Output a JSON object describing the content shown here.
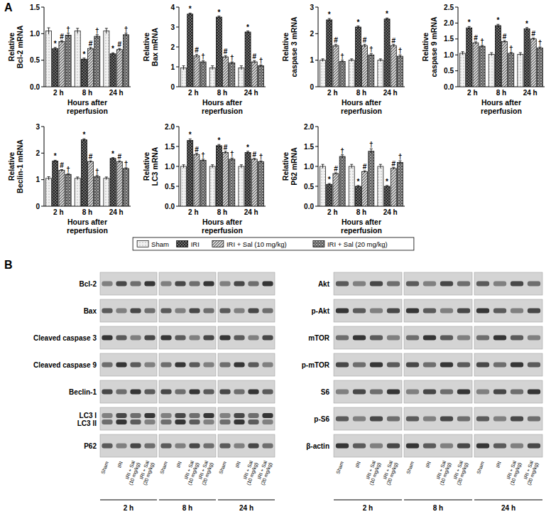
{
  "figure": {
    "panel_label": "A"
  },
  "chart_data": [
    {
      "type": "bar",
      "y_label": "Relative\nBcl-2 mRNA",
      "x_label": "Hours after\nreperfusion",
      "categories": [
        "2 h",
        "8 h",
        "24 h"
      ],
      "ylim": [
        0,
        1.5
      ],
      "yticks": [
        {
          "value": 0,
          "label": "0.0"
        },
        {
          "value": 0.5,
          "label": "0.5"
        },
        {
          "value": 1,
          "label": "1.0"
        },
        {
          "value": 1.5,
          "label": "1.5"
        }
      ],
      "legend": "bottom",
      "series": [
        {
          "name": "Sham",
          "color": "#f2f2f2",
          "values": [
            1.05,
            1.05,
            1.05
          ],
          "errors": [
            0.06,
            0.05,
            0.05
          ],
          "annotations": [
            null,
            null,
            null
          ]
        },
        {
          "name": "IRI",
          "color": "#6e6e6e",
          "values": [
            0.72,
            0.52,
            0.62
          ],
          "errors": [
            0.02,
            0.02,
            0.02
          ],
          "annotations": [
            "*",
            "*",
            "*"
          ]
        },
        {
          "name": "IRI + Sal (10 mg/kg)",
          "color": "#d0d0d0",
          "values": [
            0.85,
            0.72,
            0.7
          ],
          "errors": [
            0.02,
            0.02,
            0.02
          ],
          "annotations": [
            "#",
            "#",
            "#"
          ]
        },
        {
          "name": "IRI + Sal (20 mg/kg)",
          "color": "#a8a8a8",
          "values": [
            0.97,
            0.95,
            0.98
          ],
          "errors": [
            0.04,
            0.03,
            0.03
          ],
          "annotations": [
            "†",
            "†",
            "†"
          ]
        }
      ]
    },
    {
      "type": "bar",
      "y_label": "Relative\nBax mRNA",
      "x_label": "Hours after\nreperfusion",
      "categories": [
        "2 h",
        "8 h",
        "24 h"
      ],
      "ylim": [
        0,
        4
      ],
      "yticks": [
        0,
        1,
        2,
        3,
        4
      ],
      "series": [
        {
          "name": "Sham",
          "color": "#f2f2f2",
          "values": [
            0.95,
            0.95,
            0.95
          ],
          "errors": [
            0.1,
            0.1,
            0.1
          ],
          "annotations": [
            null,
            null,
            null
          ]
        },
        {
          "name": "IRI",
          "color": "#6e6e6e",
          "values": [
            3.65,
            3.5,
            2.75
          ],
          "errors": [
            0.05,
            0.05,
            0.05
          ],
          "annotations": [
            "*",
            "*",
            "*"
          ]
        },
        {
          "name": "IRI + Sal (10 mg/kg)",
          "color": "#d0d0d0",
          "values": [
            1.55,
            1.5,
            1.25
          ],
          "errors": [
            0.08,
            0.06,
            0.06
          ],
          "annotations": [
            "#",
            "#",
            "#"
          ]
        },
        {
          "name": "IRI + Sal (20 mg/kg)",
          "color": "#a8a8a8",
          "values": [
            1.25,
            1.2,
            1.05
          ],
          "errors": [
            0.06,
            0.05,
            0.05
          ],
          "annotations": [
            "†",
            "†",
            "†"
          ]
        }
      ]
    },
    {
      "type": "bar",
      "y_label": "Relative\ncaspase 3 mRNA",
      "x_label": "Hours after\nreperfusion",
      "categories": [
        "2 h",
        "8 h",
        "24 h"
      ],
      "ylim": [
        0,
        3
      ],
      "yticks": [
        0,
        1,
        2,
        3
      ],
      "series": [
        {
          "name": "Sham",
          "color": "#f2f2f2",
          "values": [
            1.0,
            1.0,
            1.0
          ],
          "errors": [
            0.05,
            0.05,
            0.05
          ],
          "annotations": [
            null,
            null,
            null
          ]
        },
        {
          "name": "IRI",
          "color": "#6e6e6e",
          "values": [
            2.52,
            2.25,
            2.55
          ],
          "errors": [
            0.05,
            0.04,
            0.04
          ],
          "annotations": [
            "*",
            "*",
            "*"
          ]
        },
        {
          "name": "IRI + Sal (10 mg/kg)",
          "color": "#d0d0d0",
          "values": [
            1.55,
            1.55,
            1.55
          ],
          "errors": [
            0.05,
            0.05,
            0.04
          ],
          "annotations": [
            "#",
            "#",
            "#"
          ]
        },
        {
          "name": "IRI + Sal (20 mg/kg)",
          "color": "#a8a8a8",
          "values": [
            0.95,
            1.2,
            1.15
          ],
          "errors": [
            0.05,
            0.05,
            0.05
          ],
          "annotations": [
            "†",
            "†",
            "†"
          ]
        }
      ]
    },
    {
      "type": "bar",
      "y_label": "Relative\ncaspase 9 mRNA",
      "x_label": "Hours after\nreperfusion",
      "categories": [
        "2 h",
        "8 h",
        "24 h"
      ],
      "ylim": [
        0,
        2.5
      ],
      "yticks": [
        {
          "value": 0,
          "label": "0.0"
        },
        {
          "value": 0.5,
          "label": "0.5"
        },
        {
          "value": 1,
          "label": "1.0"
        },
        {
          "value": 1.5,
          "label": "1.5"
        },
        {
          "value": 2,
          "label": "2.0"
        },
        {
          "value": 2.5,
          "label": "2.5"
        }
      ],
      "series": [
        {
          "name": "Sham",
          "color": "#f2f2f2",
          "values": [
            1.05,
            1.02,
            1.02
          ],
          "errors": [
            0.05,
            0.05,
            0.05
          ],
          "annotations": [
            null,
            null,
            null
          ]
        },
        {
          "name": "IRI",
          "color": "#6e6e6e",
          "values": [
            1.85,
            1.92,
            1.82
          ],
          "errors": [
            0.04,
            0.04,
            0.04
          ],
          "annotations": [
            "*",
            "*",
            "*"
          ]
        },
        {
          "name": "IRI + Sal (10 mg/kg)",
          "color": "#d0d0d0",
          "values": [
            1.38,
            1.42,
            1.5
          ],
          "errors": [
            0.03,
            0.03,
            0.03
          ],
          "annotations": [
            "#",
            "#",
            "#"
          ]
        },
        {
          "name": "IRI + Sal (20 mg/kg)",
          "color": "#a8a8a8",
          "values": [
            1.27,
            1.05,
            1.22
          ],
          "errors": [
            0.03,
            0.03,
            0.03
          ],
          "annotations": [
            "†",
            "†",
            "†"
          ]
        }
      ]
    },
    {
      "type": "bar",
      "y_label": "Relative\nBeclin-1 mRNA",
      "x_label": "Hours after\nreperfusion",
      "categories": [
        "2 h",
        "8 h",
        "24 h"
      ],
      "ylim": [
        0,
        3
      ],
      "yticks": [
        0,
        1,
        2,
        3
      ],
      "series": [
        {
          "name": "Sham",
          "color": "#f2f2f2",
          "values": [
            1.05,
            1.05,
            1.05
          ],
          "errors": [
            0.06,
            0.05,
            0.05
          ],
          "annotations": [
            null,
            null,
            null
          ]
        },
        {
          "name": "IRI",
          "color": "#6e6e6e",
          "values": [
            1.7,
            2.5,
            1.8
          ],
          "errors": [
            0.03,
            0.04,
            0.03
          ],
          "annotations": [
            "*",
            "*",
            "*"
          ]
        },
        {
          "name": "IRI + Sal (10 mg/kg)",
          "color": "#d0d0d0",
          "values": [
            1.35,
            1.68,
            1.68
          ],
          "errors": [
            0.03,
            0.03,
            0.03
          ],
          "annotations": [
            "#",
            "#",
            "#"
          ]
        },
        {
          "name": "IRI + Sal (20 mg/kg)",
          "color": "#a8a8a8",
          "values": [
            1.2,
            1.12,
            1.42
          ],
          "errors": [
            0.03,
            0.04,
            0.03
          ],
          "annotations": [
            "†",
            "†",
            "†"
          ]
        }
      ]
    },
    {
      "type": "bar",
      "y_label": "Relative\nLC3 mRNA",
      "x_label": "Hours after\nreperfusion",
      "categories": [
        "2 h",
        "8 h",
        "24 h"
      ],
      "ylim": [
        0,
        2
      ],
      "yticks": [
        {
          "value": 0,
          "label": "0.0"
        },
        {
          "value": 0.5,
          "label": "0.5"
        },
        {
          "value": 1,
          "label": "1.0"
        },
        {
          "value": 1.5,
          "label": "1.5"
        },
        {
          "value": 2,
          "label": "2.0"
        }
      ],
      "series": [
        {
          "name": "Sham",
          "color": "#f2f2f2",
          "values": [
            1.0,
            1.0,
            1.0
          ],
          "errors": [
            0.04,
            0.04,
            0.04
          ],
          "annotations": [
            null,
            null,
            null
          ]
        },
        {
          "name": "IRI",
          "color": "#6e6e6e",
          "values": [
            1.65,
            1.52,
            1.35
          ],
          "errors": [
            0.04,
            0.03,
            0.03
          ],
          "annotations": [
            "*",
            "*",
            "*"
          ]
        },
        {
          "name": "IRI + Sal (10 mg/kg)",
          "color": "#d0d0d0",
          "values": [
            1.3,
            1.35,
            1.18
          ],
          "errors": [
            0.03,
            0.03,
            0.02
          ],
          "annotations": [
            "#",
            "#",
            "#"
          ]
        },
        {
          "name": "IRI + Sal (20 mg/kg)",
          "color": "#a8a8a8",
          "values": [
            1.15,
            1.18,
            1.12
          ],
          "errors": [
            0.03,
            0.03,
            0.02
          ],
          "annotations": [
            "†",
            "†",
            "†"
          ]
        }
      ]
    },
    {
      "type": "bar",
      "y_label": "Relative\nP62 mRNA",
      "x_label": "Hours after\nreperfusion",
      "categories": [
        "2 h",
        "8 h",
        "24 h"
      ],
      "ylim": [
        0,
        2
      ],
      "yticks": [
        {
          "value": 0,
          "label": "0.0"
        },
        {
          "value": 0.5,
          "label": "0.5"
        },
        {
          "value": 1,
          "label": "1.0"
        },
        {
          "value": 1.5,
          "label": "1.5"
        },
        {
          "value": 2,
          "label": "2.0"
        }
      ],
      "series": [
        {
          "name": "Sham",
          "color": "#f2f2f2",
          "values": [
            1.0,
            1.0,
            1.0
          ],
          "errors": [
            0.05,
            0.05,
            0.05
          ],
          "annotations": [
            null,
            null,
            null
          ]
        },
        {
          "name": "IRI",
          "color": "#6e6e6e",
          "values": [
            0.55,
            0.5,
            0.5
          ],
          "errors": [
            0.02,
            0.02,
            0.02
          ],
          "annotations": [
            "*",
            "*",
            "*"
          ]
        },
        {
          "name": "IRI + Sal (10 mg/kg)",
          "color": "#d0d0d0",
          "values": [
            0.82,
            0.87,
            0.95
          ],
          "errors": [
            0.02,
            0.02,
            0.02
          ],
          "annotations": [
            "#",
            "#",
            "#"
          ]
        },
        {
          "name": "IRI + Sal (20 mg/kg)",
          "color": "#a8a8a8",
          "values": [
            1.25,
            1.38,
            1.1
          ],
          "errors": [
            0.04,
            0.06,
            0.04
          ],
          "annotations": [
            "†",
            "†",
            "†"
          ]
        }
      ]
    }
  ],
  "blots": {
    "panel_label": "B",
    "time_points": [
      "2 h",
      "8 h",
      "24 h"
    ],
    "lanes": [
      "Sham",
      "IRI",
      "IRI + Sal (10 mg/kg)",
      "IRI + Sal (20 mg/kg)"
    ],
    "left_rows": [
      "Bcl-2",
      "Bax",
      "Cleaved caspase 3",
      "Cleaved caspase 9",
      "Beclin-1",
      "LC3 I\nLC3 II",
      "P62"
    ],
    "right_rows": [
      "Akt",
      "p-Akt",
      "mTOR",
      "p-mTOR",
      "S6",
      "p-S6",
      "β-actin"
    ]
  }
}
